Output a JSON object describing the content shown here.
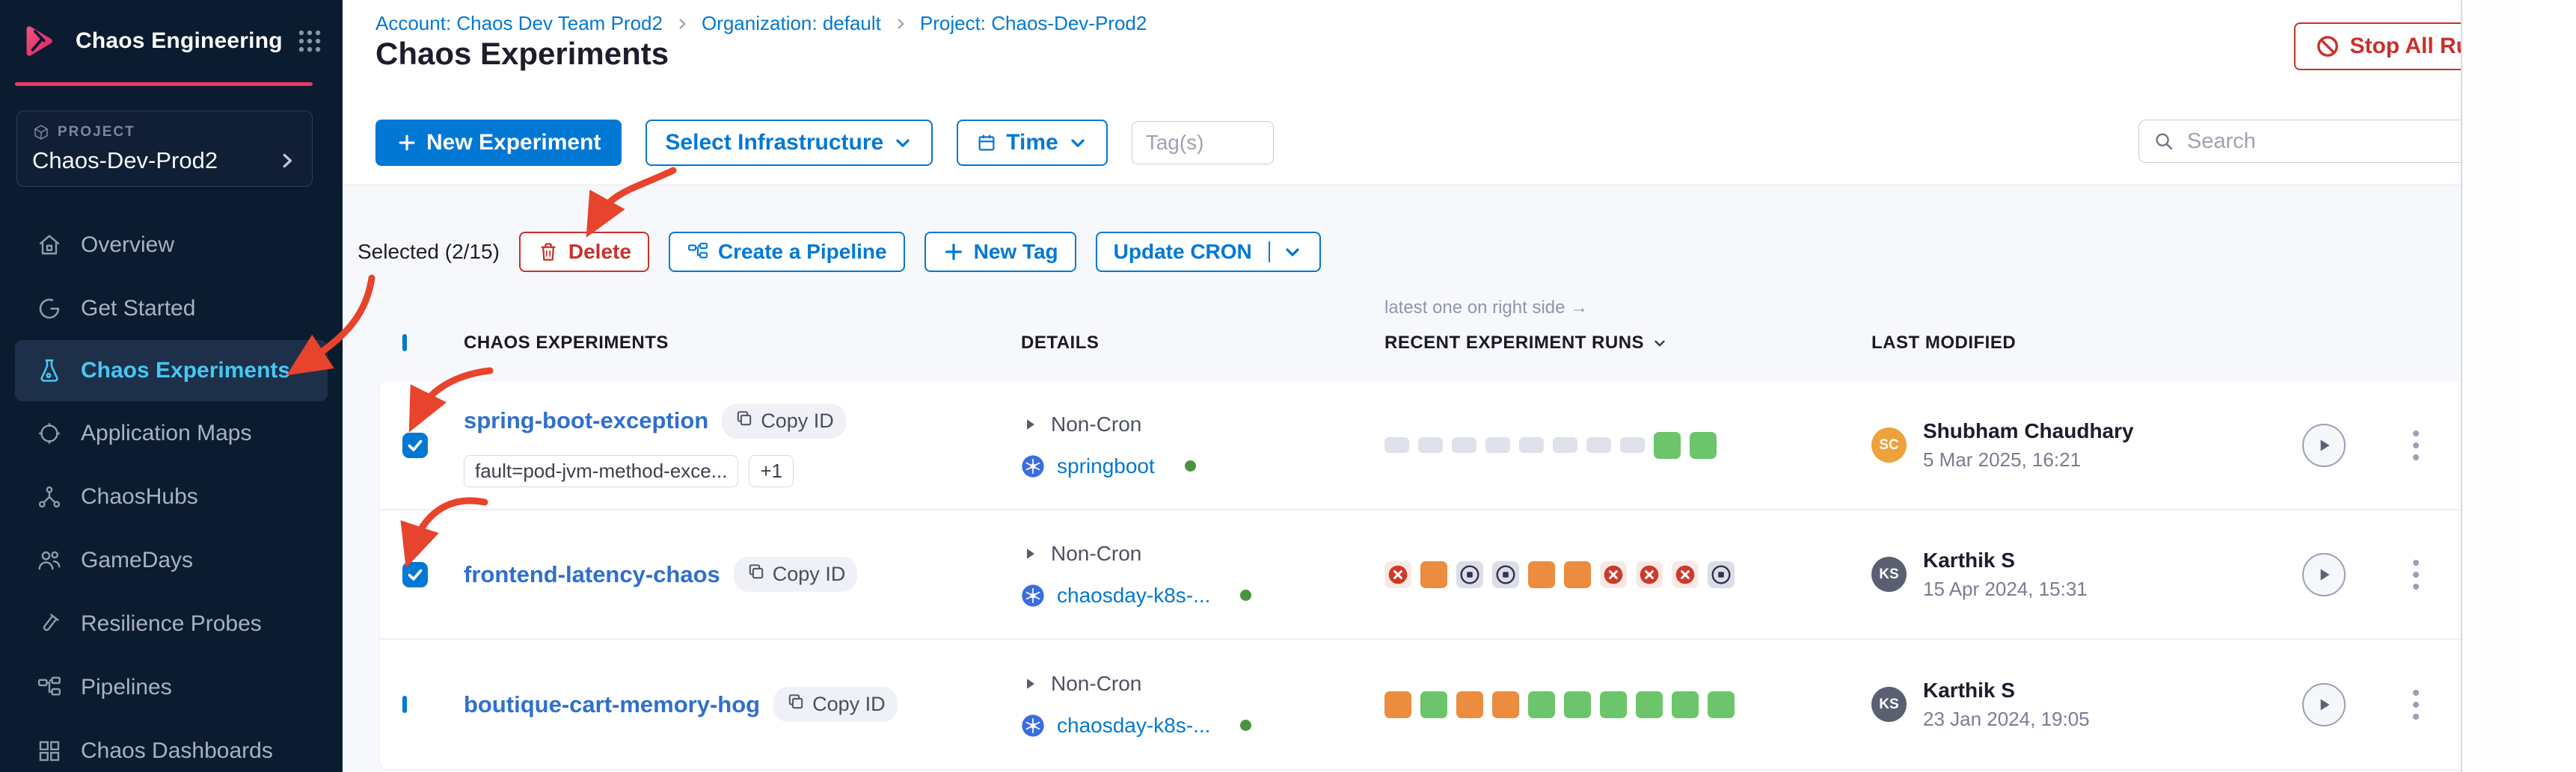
{
  "app": {
    "name": "Chaos Engineering"
  },
  "sidebar": {
    "project_label": "PROJECT",
    "project_name": "Chaos-Dev-Prod2",
    "items": [
      {
        "label": "Overview",
        "icon": "home",
        "active": false
      },
      {
        "label": "Get Started",
        "icon": "started",
        "active": false
      },
      {
        "label": "Chaos Experiments",
        "icon": "flask",
        "active": true
      },
      {
        "label": "Application Maps",
        "icon": "target",
        "active": false
      },
      {
        "label": "ChaosHubs",
        "icon": "hub",
        "active": false
      },
      {
        "label": "GameDays",
        "icon": "people",
        "active": false
      },
      {
        "label": "Resilience Probes",
        "icon": "probe",
        "active": false
      },
      {
        "label": "Pipelines",
        "icon": "pipeline",
        "active": false
      },
      {
        "label": "Chaos Dashboards",
        "icon": "dashboard",
        "active": false
      }
    ]
  },
  "breadcrumb": {
    "account": "Account: Chaos Dev Team Prod2",
    "org": "Organization: default",
    "project": "Project: Chaos-Dev-Prod2"
  },
  "page": {
    "title": "Chaos Experiments"
  },
  "header": {
    "stop_all_runs": "Stop All Runs"
  },
  "toolbar": {
    "new_experiment": "New Experiment",
    "select_infrastructure": "Select Infrastructure",
    "time": "Time",
    "tags_placeholder": "Tag(s)",
    "search_placeholder": "Search"
  },
  "selection": {
    "label": "Selected (2/15)",
    "delete": "Delete",
    "create_pipeline": "Create a Pipeline",
    "new_tag": "New Tag",
    "update_cron": "Update CRON"
  },
  "table": {
    "note": "latest one on right side →",
    "select_all_checked": false,
    "columns": [
      "CHAOS EXPERIMENTS",
      "DETAILS",
      "RECENT EXPERIMENT RUNS",
      "LAST MODIFIED"
    ],
    "rows": [
      {
        "name": "spring-boot-exception",
        "copy_id": "Copy ID",
        "checked": true,
        "tags": [
          "fault=pod-jvm-method-exce...",
          "+1"
        ],
        "schedule": "Non-Cron",
        "infra": "springboot",
        "infra_status": "connected",
        "runs": [
          "none",
          "none",
          "none",
          "none",
          "none",
          "none",
          "none",
          "none",
          "passed",
          "passed"
        ],
        "modified_by": "Shubham Chaudhary",
        "initials": "SC",
        "avatar_color": "#efa13b",
        "modified_at": "5 Mar 2025, 16:21"
      },
      {
        "name": "frontend-latency-chaos",
        "copy_id": "Copy ID",
        "checked": true,
        "tags": [],
        "schedule": "Non-Cron",
        "infra": "chaosday-k8s-...",
        "infra_status": "connected",
        "runs": [
          "failed",
          "running",
          "stopped",
          "stopped",
          "running",
          "running",
          "failed",
          "failed",
          "failed",
          "stopped"
        ],
        "modified_by": "Karthik S",
        "initials": "KS",
        "avatar_color": "#5b5f72",
        "modified_at": "15 Apr 2024, 15:31"
      },
      {
        "name": "boutique-cart-memory-hog",
        "copy_id": "Copy ID",
        "checked": false,
        "tags": [],
        "schedule": "Non-Cron",
        "infra": "chaosday-k8s-...",
        "infra_status": "connected",
        "runs": [
          "running",
          "passed",
          "running",
          "running",
          "passed",
          "passed",
          "passed",
          "passed",
          "passed",
          "passed"
        ],
        "modified_by": "Karthik S",
        "initials": "KS",
        "avatar_color": "#5b5f72",
        "modified_at": "23 Jan 2024, 19:05"
      }
    ]
  },
  "colors": {
    "primary_blue": "#0278d5",
    "sidebar_bg": "#0b1c30",
    "accent_pink": "#e93a67",
    "active_item_blue": "#45c8f3",
    "danger_red": "#c9302c",
    "annotation_red": "#e8432c",
    "link_blue": "#2f6fd0",
    "run_passed_green": "#6cc56a",
    "run_running_orange": "#ec8c3f",
    "run_failed_red": "#cf3a28",
    "run_none_gray": "#dfe1ea",
    "status_dot_green": "#4a9440"
  }
}
